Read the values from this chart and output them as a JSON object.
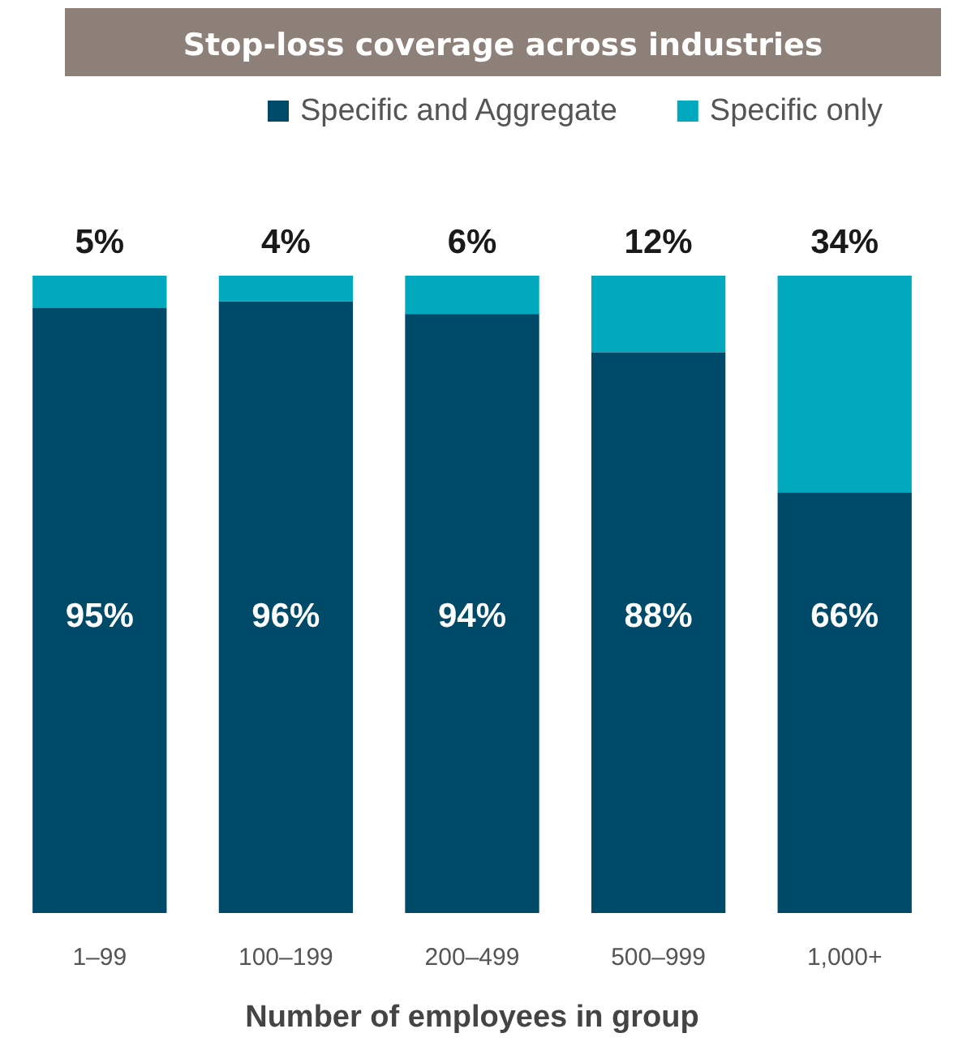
{
  "chart_data": {
    "type": "bar",
    "title": "Stop-loss coverage across industries",
    "xlabel": "Number of employees in group",
    "categories": [
      "1–99",
      "100–199",
      "200–499",
      "500–999",
      "1,000+"
    ],
    "stacked": true,
    "legend": "top right",
    "series": [
      {
        "name": "Specific and Aggregate",
        "color": "#004a69",
        "values": [
          95,
          96,
          94,
          88,
          66
        ],
        "value_labels": [
          "95%",
          "96%",
          "94%",
          "88%",
          "66%"
        ]
      },
      {
        "name": "Specific only",
        "color": "#00a9bd",
        "values": [
          5,
          4,
          6,
          12,
          34
        ],
        "value_labels": [
          "5%",
          "4%",
          "6%",
          "12%",
          "34%"
        ]
      }
    ]
  }
}
